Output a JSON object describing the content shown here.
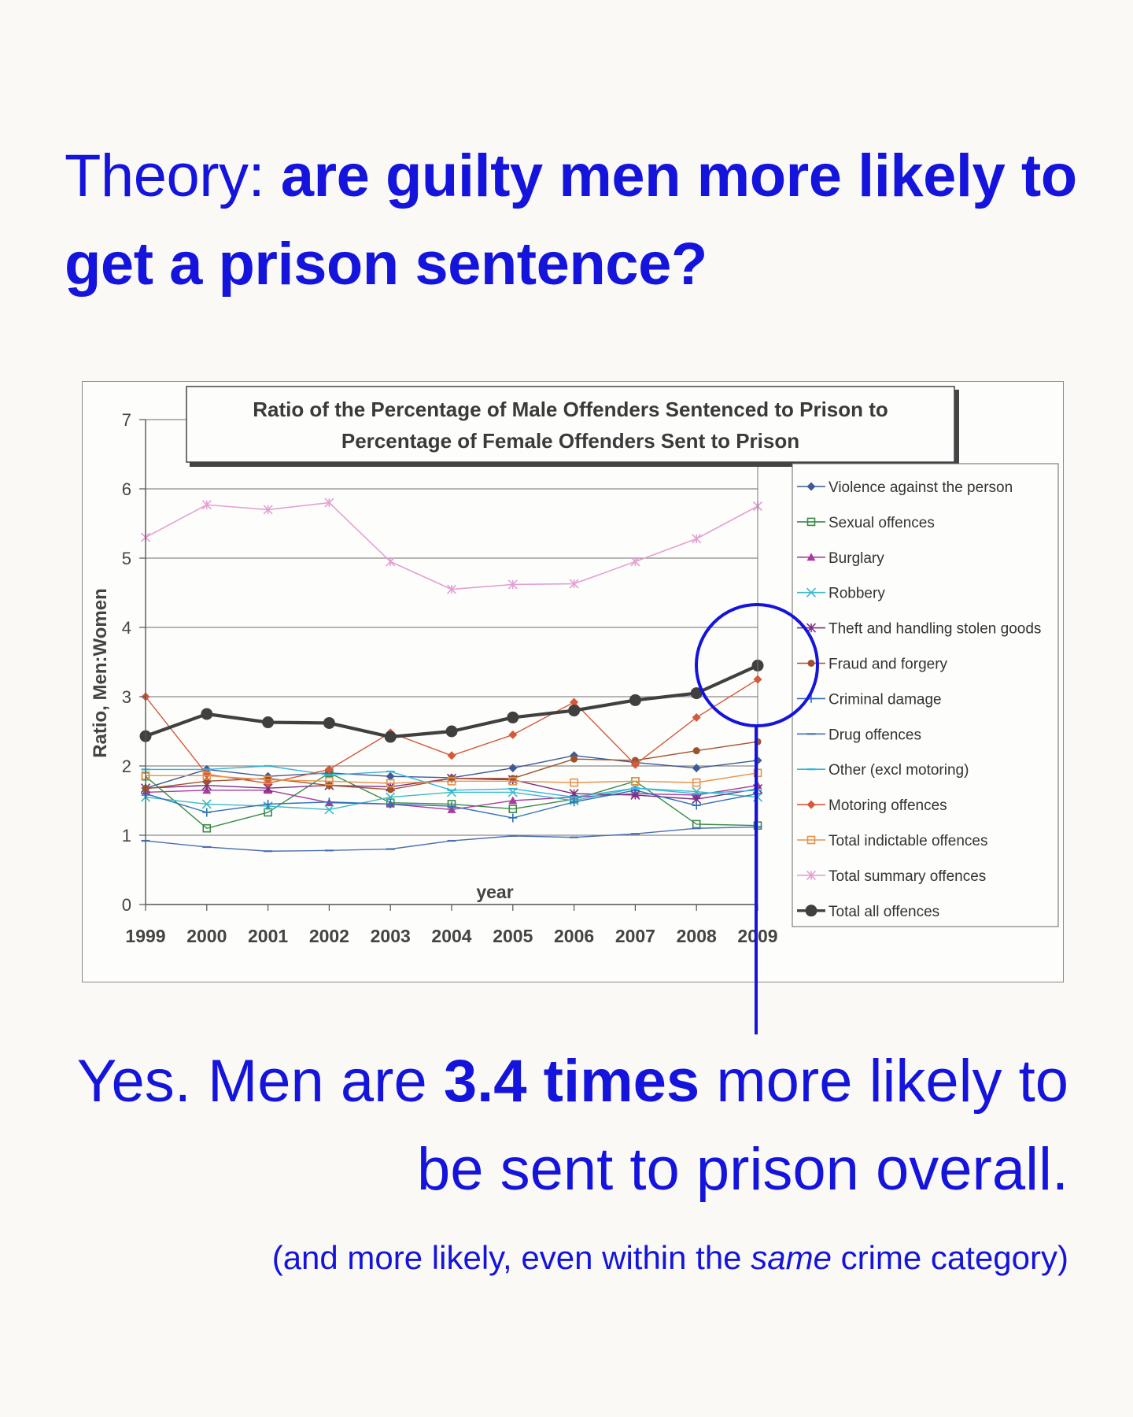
{
  "headline": {
    "prefix": "Theory:",
    "question": "are guilty men more likely to get a prison sentence?"
  },
  "answer": {
    "part1": "Yes. Men are",
    "highlight": "3.4 times",
    "part2": "more likely to be sent to prison overall."
  },
  "footnote": {
    "before": "(and more likely, even within the",
    "emphasis": "same",
    "after": "crime category)"
  },
  "colors": {
    "accent": "#1414dc"
  },
  "chart_data": {
    "type": "line",
    "title_line1": "Ratio of the Percentage of Male Offenders Sentenced to Prison to",
    "title_line2": "Percentage of Female Offenders Sent to Prison",
    "xlabel": "year",
    "ylabel": "Ratio, Men:Women",
    "ylim": [
      0,
      7
    ],
    "yticks": [
      "0",
      "1",
      "2",
      "3",
      "4",
      "5",
      "6",
      "7"
    ],
    "categories": [
      "1999",
      "2000",
      "2001",
      "2002",
      "2003",
      "2004",
      "2005",
      "2006",
      "2007",
      "2008",
      "2009"
    ],
    "legend_position": "right",
    "grid": true,
    "series": [
      {
        "name": "Violence against the person",
        "color": "#3f5a96",
        "marker": "diamond",
        "width": 1.4,
        "values": [
          1.68,
          1.95,
          1.85,
          1.9,
          1.85,
          1.83,
          1.97,
          2.15,
          2.05,
          1.97,
          2.08
        ]
      },
      {
        "name": "Sexual offences",
        "color": "#3a8a4a",
        "marker": "square",
        "width": 1.4,
        "values": [
          1.85,
          1.1,
          1.33,
          1.9,
          1.47,
          1.45,
          1.38,
          1.52,
          1.78,
          1.16,
          1.14
        ]
      },
      {
        "name": "Burglary",
        "color": "#a83ca0",
        "marker": "triangle",
        "width": 1.4,
        "values": [
          1.62,
          1.65,
          1.65,
          1.47,
          1.45,
          1.37,
          1.5,
          1.55,
          1.6,
          1.58,
          1.72
        ]
      },
      {
        "name": "Robbery",
        "color": "#3cb9c8",
        "marker": "x",
        "width": 1.4,
        "values": [
          1.55,
          1.45,
          1.42,
          1.37,
          1.55,
          1.62,
          1.62,
          1.5,
          1.68,
          1.63,
          1.55
        ]
      },
      {
        "name": "Theft and handling stolen goods",
        "color": "#7a2f80",
        "marker": "star",
        "width": 1.4,
        "values": [
          1.68,
          1.72,
          1.68,
          1.72,
          1.7,
          1.82,
          1.8,
          1.6,
          1.58,
          1.52,
          1.67
        ]
      },
      {
        "name": "Fraud and forgery",
        "color": "#a0522d",
        "marker": "circle",
        "width": 1.4,
        "values": [
          1.67,
          1.78,
          1.82,
          1.72,
          1.66,
          1.82,
          1.82,
          2.1,
          2.08,
          2.22,
          2.35
        ]
      },
      {
        "name": "Criminal damage",
        "color": "#2f6fb5",
        "marker": "plus",
        "width": 1.4,
        "values": [
          1.6,
          1.33,
          1.45,
          1.48,
          1.45,
          1.42,
          1.25,
          1.48,
          1.65,
          1.43,
          1.6
        ]
      },
      {
        "name": "Drug offences",
        "color": "#4a6fb0",
        "marker": "dash",
        "width": 1.4,
        "values": [
          0.92,
          0.83,
          0.77,
          0.78,
          0.8,
          0.92,
          0.99,
          0.97,
          1.02,
          1.1,
          1.12
        ]
      },
      {
        "name": "Other (excl motoring)",
        "color": "#35b5dc",
        "marker": "dash",
        "width": 1.4,
        "values": [
          1.95,
          1.95,
          2.0,
          1.87,
          1.92,
          1.65,
          1.67,
          1.55,
          1.68,
          1.6,
          1.65
        ]
      },
      {
        "name": "Motoring offences",
        "color": "#d45a3c",
        "marker": "diamond",
        "width": 1.4,
        "values": [
          3.0,
          1.88,
          1.75,
          1.95,
          2.48,
          2.15,
          2.45,
          2.92,
          2.02,
          2.7,
          3.25
        ]
      },
      {
        "name": "Total indictable offences",
        "color": "#e8924a",
        "marker": "square",
        "width": 1.4,
        "values": [
          1.86,
          1.86,
          1.8,
          1.78,
          1.75,
          1.78,
          1.78,
          1.76,
          1.78,
          1.76,
          1.9
        ]
      },
      {
        "name": "Total summary offences",
        "color": "#e4a0d4",
        "marker": "star",
        "width": 1.6,
        "values": [
          5.3,
          5.77,
          5.7,
          5.8,
          4.95,
          4.55,
          4.62,
          4.63,
          4.95,
          5.28,
          5.75
        ]
      },
      {
        "name": "Total all offences",
        "color": "#404040",
        "marker": "bigcircle",
        "width": 4.2,
        "values": [
          2.43,
          2.75,
          2.63,
          2.62,
          2.42,
          2.5,
          2.7,
          2.8,
          2.95,
          3.05,
          3.45
        ]
      }
    ]
  }
}
